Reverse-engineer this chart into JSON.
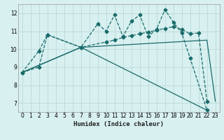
{
  "xlabel": "Humidex (Indice chaleur)",
  "bg_color": "#d8f0f0",
  "grid_color": "#c0dcdc",
  "line_color": "#1a6b6b",
  "xlim": [
    -0.5,
    23.5
  ],
  "ylim": [
    6.5,
    12.5
  ],
  "xticks": [
    0,
    1,
    2,
    3,
    4,
    5,
    6,
    7,
    8,
    9,
    10,
    11,
    12,
    13,
    14,
    15,
    16,
    17,
    18,
    19,
    20,
    21,
    22,
    23
  ],
  "yticks": [
    7,
    8,
    9,
    10,
    11,
    12
  ],
  "line1_x": [
    0,
    2,
    3,
    7,
    9,
    10,
    11,
    12,
    13,
    14,
    15,
    16,
    17,
    18,
    19,
    20,
    22
  ],
  "line1_y": [
    8.7,
    9.0,
    10.8,
    10.1,
    11.4,
    11.0,
    11.9,
    10.7,
    11.55,
    11.9,
    10.7,
    11.1,
    12.2,
    11.5,
    10.9,
    9.5,
    6.6
  ],
  "line2_x": [
    0,
    2,
    3,
    7,
    10,
    11,
    12,
    13,
    14,
    15,
    16,
    17,
    18,
    19,
    20,
    21,
    22
  ],
  "line2_y": [
    8.7,
    9.9,
    10.8,
    10.1,
    10.4,
    10.5,
    10.65,
    10.75,
    10.85,
    10.95,
    11.05,
    11.15,
    11.25,
    11.1,
    10.85,
    10.9,
    7.1
  ],
  "line3_x": [
    0,
    7,
    22
  ],
  "line3_y": [
    8.7,
    10.1,
    6.6
  ],
  "line4_x": [
    0,
    7,
    22,
    23
  ],
  "line4_y": [
    8.7,
    10.1,
    10.5,
    7.1
  ]
}
